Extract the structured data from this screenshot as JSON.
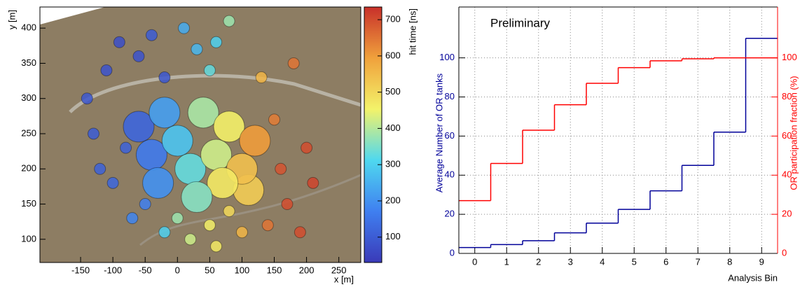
{
  "chart_data": [
    {
      "type": "scatter",
      "x_label": "x [m]",
      "y_label": "y [m]",
      "x": [
        -140,
        -130,
        -120,
        -110,
        -100,
        -90,
        -80,
        -70,
        -60,
        -50,
        -40,
        -20,
        10,
        30,
        60,
        50,
        80,
        130,
        150,
        160,
        170,
        180,
        200,
        210,
        190,
        140,
        0,
        20,
        50,
        80,
        100,
        110,
        60,
        -20,
        -60,
        -40,
        -20,
        0,
        20,
        40,
        60,
        80,
        100,
        120,
        -30,
        70,
        30
      ],
      "values": [
        300,
        250,
        200,
        340,
        180,
        380,
        230,
        130,
        360,
        150,
        390,
        330,
        400,
        370,
        380,
        340,
        410,
        330,
        270,
        200,
        150,
        350,
        230,
        180,
        110,
        120,
        130,
        100,
        120,
        140,
        110,
        170,
        90,
        110,
        260,
        220,
        280,
        240,
        200,
        280,
        220,
        260,
        200,
        240,
        180,
        180,
        160
      ],
      "color_values": [
        90,
        100,
        110,
        80,
        120,
        70,
        110,
        180,
        80,
        170,
        100,
        90,
        240,
        260,
        300,
        330,
        380,
        560,
        640,
        690,
        700,
        650,
        700,
        710,
        700,
        650,
        380,
        420,
        460,
        500,
        560,
        520,
        470,
        300,
        120,
        160,
        220,
        280,
        330,
        390,
        420,
        460,
        540,
        600,
        200,
        470,
        360
      ],
      "xlim": [
        -213,
        284
      ],
      "xticks": [
        -150,
        -100,
        -50,
        0,
        50,
        100,
        150,
        200,
        250
      ],
      "ylim": [
        67,
        430
      ],
      "yticks": [
        100,
        150,
        200,
        250,
        300,
        350,
        400
      ],
      "colorbar": {
        "label": "hit time [ns]",
        "lim": [
          30,
          735
        ],
        "ticks": [
          100,
          200,
          300,
          400,
          500,
          600,
          700
        ],
        "colormap": [
          "#3a3ab8",
          "#3f7ff0",
          "#4fd8ef",
          "#f3f36a",
          "#f0a13c",
          "#c8302a"
        ]
      }
    },
    {
      "type": "step",
      "annotation": "Preliminary",
      "x_label": "Analysis Bin",
      "y_label": "Average Number of OR tanks",
      "y2_label": "OR participation fraction (%)",
      "x": [
        0,
        1,
        2,
        3,
        4,
        5,
        6,
        7,
        8,
        9
      ],
      "series": [
        {
          "color": "#000099",
          "values": [
            3,
            4.5,
            6.5,
            10.5,
            15.5,
            22.5,
            32,
            45,
            62,
            110
          ]
        },
        {
          "color": "#ff0000",
          "axis": "y2",
          "values": [
            27,
            46,
            63,
            76,
            87,
            95,
            98.5,
            99.5,
            100,
            100
          ]
        }
      ],
      "xlim": [
        -0.5,
        9.5
      ],
      "xticks": [
        0,
        1,
        2,
        3,
        4,
        5,
        6,
        7,
        8,
        9
      ],
      "ylim": [
        0,
        126
      ],
      "yticks": [
        0,
        20,
        40,
        60,
        80,
        100
      ],
      "y2lim": [
        0,
        126
      ],
      "y2ticks": [
        0,
        20,
        40,
        60,
        80,
        100
      ],
      "grid": true
    }
  ]
}
